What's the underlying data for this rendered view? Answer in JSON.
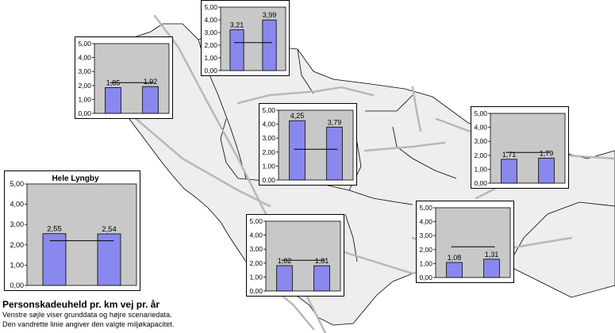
{
  "colors": {
    "bar_fill": "#8888ee",
    "bar_stroke": "#000000",
    "plot_bg": "#c8c8c8",
    "land": "#eeeeee",
    "roads": "#b8b8b8"
  },
  "chart_data": [
    {
      "type": "bar",
      "id": "north",
      "title": "",
      "categories": [
        "",
        ""
      ],
      "values": [
        3.21,
        3.99
      ],
      "labels": [
        "3,21",
        "3,99"
      ],
      "threshold": 2.2,
      "ylim": [
        0,
        5
      ],
      "ytick_labels": [
        "0,00",
        "1,00",
        "2,00",
        "3,00",
        "4,00",
        "5,00"
      ]
    },
    {
      "type": "bar",
      "id": "northwest",
      "title": "",
      "categories": [
        "",
        ""
      ],
      "values": [
        1.85,
        1.92
      ],
      "labels": [
        "1,85",
        "1,92"
      ],
      "threshold": 2.2,
      "ylim": [
        0,
        5
      ],
      "ytick_labels": [
        "0,00",
        "1,00",
        "2,00",
        "3,00",
        "4,00",
        "5,00"
      ]
    },
    {
      "type": "bar",
      "id": "center",
      "title": "",
      "categories": [
        "",
        ""
      ],
      "values": [
        4.25,
        3.79
      ],
      "labels": [
        "4,25",
        "3,79"
      ],
      "threshold": 2.2,
      "ylim": [
        0,
        5
      ],
      "ytick_labels": [
        "0,00",
        "1,00",
        "2,00",
        "3,00",
        "4,00",
        "5,00"
      ]
    },
    {
      "type": "bar",
      "id": "east",
      "title": "",
      "categories": [
        "",
        ""
      ],
      "values": [
        1.71,
        1.79
      ],
      "labels": [
        "1,71",
        "1,79"
      ],
      "threshold": 2.2,
      "ylim": [
        0,
        5
      ],
      "ytick_labels": [
        "0,00",
        "1,00",
        "2,00",
        "3,00",
        "4,00",
        "5,00"
      ]
    },
    {
      "type": "bar",
      "id": "whole",
      "title": "Hele Lyngby",
      "categories": [
        "",
        ""
      ],
      "values": [
        2.55,
        2.54
      ],
      "labels": [
        "2,55",
        "2,54"
      ],
      "threshold": 2.2,
      "ylim": [
        0,
        5
      ],
      "ytick_labels": [
        "0,00",
        "1,00",
        "2,00",
        "3,00",
        "4,00",
        "5,00"
      ]
    },
    {
      "type": "bar",
      "id": "south",
      "title": "",
      "categories": [
        "",
        ""
      ],
      "values": [
        1.82,
        1.81
      ],
      "labels": [
        "1,82",
        "1,81"
      ],
      "threshold": 2.2,
      "ylim": [
        0,
        5
      ],
      "ytick_labels": [
        "0,00",
        "1,00",
        "2,00",
        "3,00",
        "4,00",
        "5,00"
      ]
    },
    {
      "type": "bar",
      "id": "southeast",
      "title": "",
      "categories": [
        "",
        ""
      ],
      "values": [
        1.08,
        1.31
      ],
      "labels": [
        "1,08",
        "1,31"
      ],
      "threshold": 2.2,
      "ylim": [
        0,
        5
      ],
      "ytick_labels": [
        "0,00",
        "1,00",
        "2,00",
        "3,00",
        "4,00",
        "5,00"
      ]
    }
  ],
  "legend": {
    "title": "Personskadeuheld pr. km vej pr. år",
    "line1": "Venstre søjle viser grunddata og højre scenariedata.",
    "line2": "Den vandrette linie angiver den valgte miljøkapacitet."
  }
}
